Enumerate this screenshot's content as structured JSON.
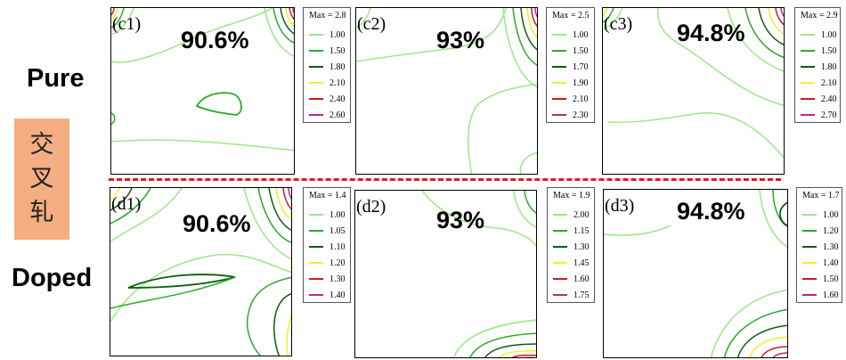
{
  "row_labels": {
    "top": "Pure",
    "bottom": "Doped"
  },
  "side_label": [
    "交",
    "叉",
    "轧"
  ],
  "colors": {
    "c1": "#97ea83",
    "c2": "#2aaa2a",
    "c3": "#0d5c0d",
    "c4": "#f3ee2c",
    "c5": "#cc1a1a",
    "c6": "#c02585",
    "divider": "#d8201c",
    "side": "#f4ae82"
  },
  "panels": [
    {
      "id": "(c1)",
      "reduction": "90.6%",
      "legend": {
        "max": "Max = 2.8",
        "levels": [
          "1.00",
          "1.50",
          "1.80",
          "2.10",
          "2.40",
          "2.60"
        ]
      }
    },
    {
      "id": "(c2)",
      "reduction": "93%",
      "legend": {
        "max": "Max = 2.5",
        "levels": [
          "1.00",
          "1.50",
          "1.70",
          "1.90",
          "2.10",
          "2.30"
        ]
      }
    },
    {
      "id": "(c3)",
      "reduction": "94.8%",
      "legend": {
        "max": "Max = 2.9",
        "levels": [
          "1.00",
          "1.50",
          "1.80",
          "2.10",
          "2.40",
          "2.70"
        ]
      }
    },
    {
      "id": "(d1)",
      "reduction": "90.6%",
      "legend": {
        "max": "Max = 1.4",
        "levels": [
          "1.00",
          "1.05",
          "1.10",
          "1.20",
          "1.30",
          "1.40"
        ]
      }
    },
    {
      "id": "(d2)",
      "reduction": "93%",
      "legend": {
        "max": "Max = 1.9",
        "levels": [
          "2.00",
          "1.15",
          "1.30",
          "1.45",
          "1.60",
          "1.75"
        ]
      }
    },
    {
      "id": "(d3)",
      "reduction": "94.8%",
      "legend": {
        "max": "Max = 1.7",
        "levels": [
          "1.00",
          "1.20",
          "1.30",
          "1.40",
          "1.50",
          "1.60"
        ]
      }
    }
  ]
}
